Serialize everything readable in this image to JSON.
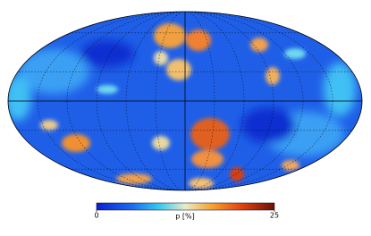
{
  "colorbar": {
    "label": "p [%]",
    "lim": [
      0,
      25
    ],
    "ticks": [
      0,
      25
    ]
  }
}
